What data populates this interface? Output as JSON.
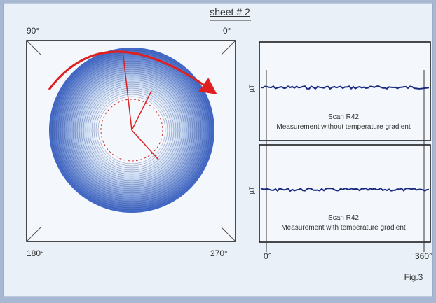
{
  "header": {
    "title": "sheet # 2"
  },
  "disk": {
    "angle_labels": [
      "90°",
      "0°",
      "180°",
      "270°"
    ]
  },
  "scans": [
    {
      "unit": "µT",
      "title": "Scan R42",
      "caption": "Measurement without temperature gradient"
    },
    {
      "unit": "µT",
      "title": "Scan R42",
      "caption": "Measurement with temperature gradient"
    }
  ],
  "scan_axis": {
    "start": "0°",
    "end": "360°"
  },
  "footer": {
    "figure": "Fig.3"
  }
}
